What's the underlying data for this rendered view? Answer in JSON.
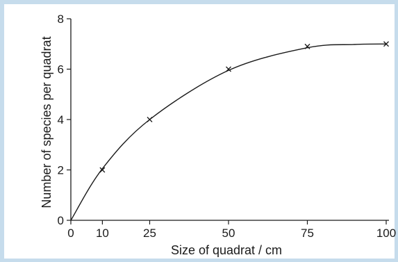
{
  "chart_data": {
    "type": "scatter",
    "title": "",
    "xlabel": "Size of quadrat / cm",
    "ylabel": "Number of species per quadrat",
    "x_ticks": [
      0,
      10,
      25,
      50,
      75,
      100
    ],
    "y_ticks": [
      0,
      2,
      4,
      6,
      8
    ],
    "xlim": [
      0,
      100
    ],
    "ylim": [
      0,
      8
    ],
    "grid": false,
    "series": [
      {
        "marker": "x",
        "x": [
          10,
          25,
          50,
          75,
          100
        ],
        "y": [
          2,
          4,
          6,
          6.9,
          7
        ]
      }
    ],
    "fit_curve": {
      "style": "smooth",
      "x": [
        0,
        10,
        25,
        50,
        75,
        90,
        100
      ],
      "y": [
        0,
        2.05,
        4.0,
        5.95,
        6.85,
        6.98,
        7.0
      ]
    },
    "colors": {
      "background": "#c6dcec",
      "plot": "#ffffff",
      "ink": "#1a1a1a"
    }
  }
}
